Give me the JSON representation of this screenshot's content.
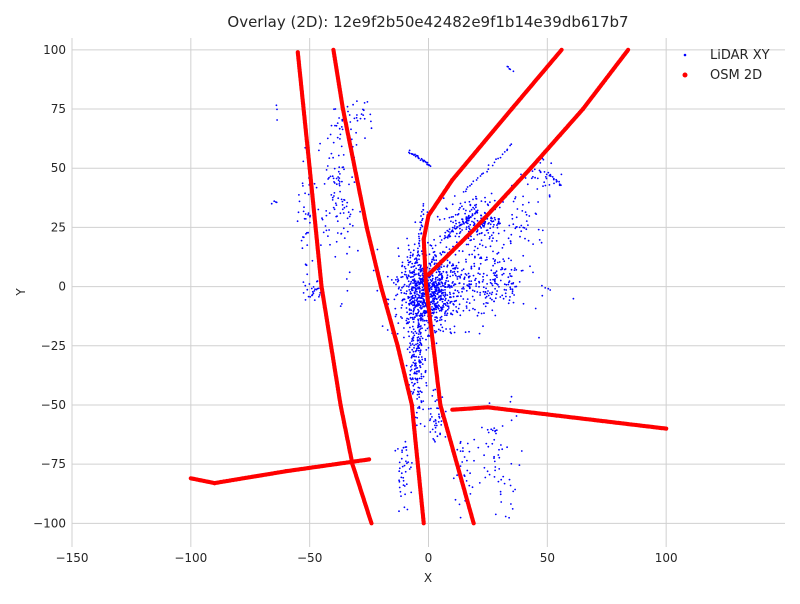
{
  "chart_data": {
    "type": "scatter",
    "title": "Overlay (2D): 12e9f2b50e42482e9f1b14e39db617b7",
    "xlabel": "X",
    "ylabel": "Y",
    "xlim": [
      -150,
      150
    ],
    "ylim": [
      -110,
      105
    ],
    "xticks": [
      -150,
      -100,
      -50,
      0,
      50,
      100
    ],
    "yticks": [
      -100,
      -75,
      -50,
      -25,
      0,
      25,
      50,
      75,
      100
    ],
    "grid": true,
    "legend_position": "top-right",
    "colors": {
      "lidar": "#0000ff",
      "osm": "#ff0000",
      "grid": "#d0d0d0"
    },
    "series": [
      {
        "name": "LiDAR XY",
        "marker": "small-dot",
        "color": "#0000ff",
        "clusters": [
          {
            "center": [
              0,
              -2
            ],
            "spread": [
              11,
              14
            ],
            "count": 900
          },
          {
            "center": [
              -5,
              -32
            ],
            "spread": [
              3,
              22
            ],
            "count": 180
          },
          {
            "center": [
              20,
              28
            ],
            "spread": [
              14,
              8
            ],
            "count": 220
          },
          {
            "center": [
              25,
              2
            ],
            "spread": [
              14,
              13
            ],
            "count": 220
          },
          {
            "center": [
              -38,
              36
            ],
            "spread": [
              6,
              30
            ],
            "count": 110
          },
          {
            "center": [
              -33,
              70
            ],
            "spread": [
              8,
              7
            ],
            "count": 45
          },
          {
            "center": [
              -51,
              26
            ],
            "spread": [
              3,
              22
            ],
            "count": 45
          },
          {
            "center": [
              -48,
              -3
            ],
            "spread": [
              3,
              4
            ],
            "count": 25
          },
          {
            "center": [
              30,
              -70
            ],
            "spread": [
              8,
              20
            ],
            "count": 60
          },
          {
            "center": [
              3,
              -55
            ],
            "spread": [
              3,
              10
            ],
            "count": 40
          },
          {
            "center": [
              -10,
              -78
            ],
            "spread": [
              3,
              12
            ],
            "count": 40
          },
          {
            "center": [
              15,
              -78
            ],
            "spread": [
              4,
              12
            ],
            "count": 35
          },
          {
            "center": [
              48,
              47
            ],
            "spread": [
              7,
              6
            ],
            "count": 30
          },
          {
            "center": [
              40,
              30
            ],
            "spread": [
              6,
              12
            ],
            "count": 30
          },
          {
            "center": [
              -65,
              36
            ],
            "spread": [
              1.5,
              1
            ],
            "count": 4
          },
          {
            "center": [
              -64,
              75
            ],
            "spread": [
              1,
              10
            ],
            "count": 3
          }
        ],
        "segments": [
          {
            "from": [
              -8,
              57
            ],
            "to": [
              1,
              51
            ],
            "count": 30
          },
          {
            "from": [
              -2,
              35
            ],
            "to": [
              -5,
              10
            ],
            "count": 30
          },
          {
            "from": [
              6,
              20
            ],
            "to": [
              21,
              32
            ],
            "count": 35
          },
          {
            "from": [
              33,
              93
            ],
            "to": [
              35,
              91
            ],
            "count": 5
          },
          {
            "from": [
              50,
              48
            ],
            "to": [
              56,
              43
            ],
            "count": 15
          },
          {
            "from": [
              15,
              40
            ],
            "to": [
              35,
              60
            ],
            "count": 25
          },
          {
            "from": [
              48,
              0
            ],
            "to": [
              51,
              -1
            ],
            "count": 4
          }
        ]
      },
      {
        "name": "OSM 2D",
        "marker": "dot",
        "color": "#ff0000",
        "polylines": [
          [
            [
              -55,
              99
            ],
            [
              -50,
              50
            ],
            [
              -45,
              0
            ],
            [
              -37,
              -50
            ],
            [
              -32,
              -75
            ],
            [
              -24,
              -100
            ]
          ],
          [
            [
              -40,
              100
            ],
            [
              -36,
              75
            ],
            [
              -26,
              25
            ],
            [
              -20,
              0
            ],
            [
              -13,
              -25
            ],
            [
              -7,
              -50
            ],
            [
              -2,
              -100
            ]
          ],
          [
            [
              56,
              100
            ],
            [
              35,
              75
            ],
            [
              10,
              45
            ],
            [
              0,
              30
            ],
            [
              -2,
              20
            ],
            [
              -1,
              0
            ],
            [
              5,
              -50
            ],
            [
              19,
              -100
            ]
          ],
          [
            [
              84,
              100
            ],
            [
              65,
              75
            ],
            [
              43,
              50
            ],
            [
              20,
              25
            ],
            [
              0,
              5
            ]
          ],
          [
            [
              -100,
              -81
            ],
            [
              -90,
              -83
            ],
            [
              -60,
              -78
            ],
            [
              -25,
              -73
            ]
          ],
          [
            [
              10,
              -52
            ],
            [
              25,
              -51
            ],
            [
              50,
              -54
            ],
            [
              100,
              -60
            ]
          ]
        ]
      }
    ]
  }
}
